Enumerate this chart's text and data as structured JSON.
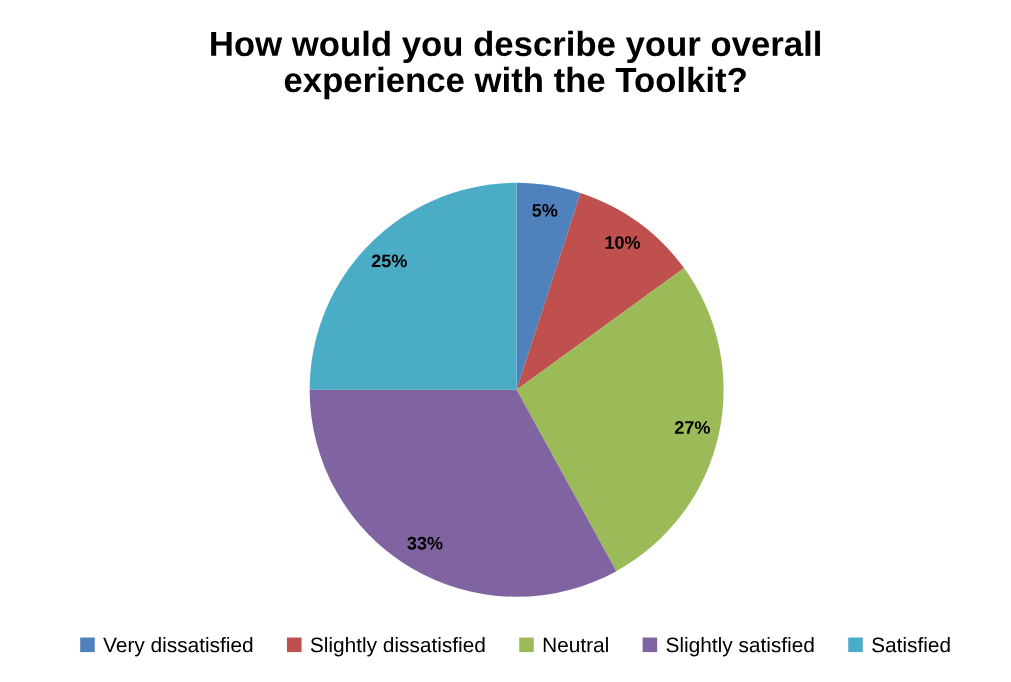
{
  "chart_data": {
    "type": "pie",
    "title": "How would you describe your overall\nexperience with the Toolkit?",
    "categories": [
      "Very dissatisfied",
      "Slightly dissatisfied",
      "Neutral",
      "Slightly satisfied",
      "Satisfied"
    ],
    "values": [
      5,
      10,
      27,
      33,
      25
    ],
    "colors": [
      "#4f81bd",
      "#c0504d",
      "#9bbb59",
      "#8064a2",
      "#4bacc6"
    ],
    "value_labels": [
      "5%",
      "10%",
      "27%",
      "33%",
      "25%"
    ],
    "legend": "bottom"
  }
}
